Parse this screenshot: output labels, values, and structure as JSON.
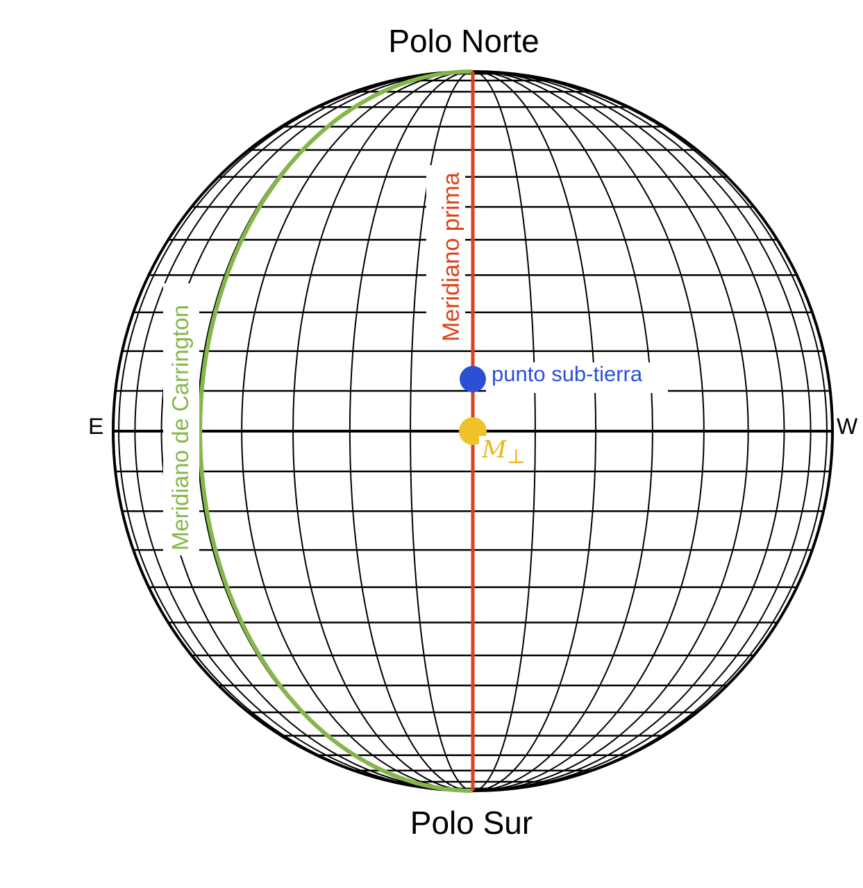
{
  "labels": {
    "north_pole": "Polo Norte",
    "south_pole": "Polo Sur",
    "east": "E",
    "west": "W",
    "prime_meridian": "Meridiano prima",
    "carrington_meridian": "Meridiano de Carrington",
    "sub_earth_point": "punto sub-tierra",
    "m_symbol": "M",
    "m_subscript": "⊥"
  },
  "colors": {
    "grid": "#000000",
    "prime_meridian": "#d9441c",
    "carrington_meridian": "#86b64b",
    "sub_earth_point": "#2b50d6",
    "m_point": "#f0c22a",
    "m_label": "#e8b820",
    "sub_earth_label": "#2b50d6"
  },
  "grid": {
    "meridian_step_deg": 10,
    "latitude_lines": 13
  }
}
